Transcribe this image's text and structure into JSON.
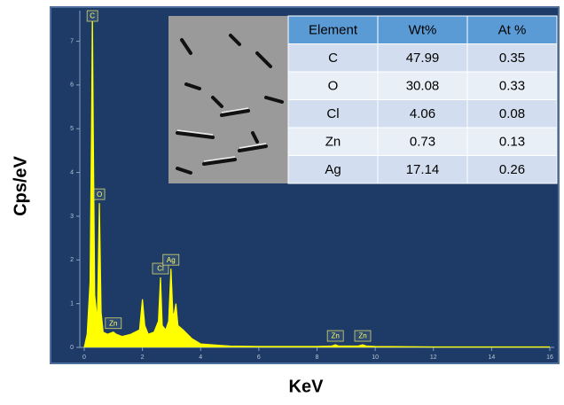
{
  "chart_data": {
    "type": "area",
    "x_label": "KeV",
    "y_label": "Cps/eV",
    "x": [
      0,
      0.1,
      0.2,
      0.25,
      0.28,
      0.31,
      0.36,
      0.45,
      0.52,
      0.58,
      0.65,
      0.8,
      1.0,
      1.1,
      1.3,
      1.6,
      1.9,
      2.0,
      2.08,
      2.2,
      2.4,
      2.55,
      2.62,
      2.68,
      2.8,
      2.9,
      2.98,
      3.05,
      3.1,
      3.15,
      3.22,
      3.4,
      3.7,
      4.0,
      5,
      6,
      7,
      8,
      8.5,
      8.63,
      8.75,
      9.4,
      9.57,
      9.7,
      10,
      12,
      14,
      16
    ],
    "values": [
      0,
      0.3,
      1.5,
      5,
      7.7,
      5,
      1.2,
      0.6,
      3.3,
      0.8,
      0.35,
      0.3,
      0.35,
      0.3,
      0.25,
      0.3,
      0.4,
      1.1,
      0.5,
      0.3,
      0.35,
      0.6,
      1.6,
      0.5,
      0.4,
      0.6,
      1.8,
      0.7,
      0.8,
      1.0,
      0.5,
      0.4,
      0.2,
      0.08,
      0.03,
      0.02,
      0.02,
      0.02,
      0.03,
      0.06,
      0.03,
      0.03,
      0.06,
      0.03,
      0.02,
      0.01,
      0.01,
      0.01
    ],
    "color": "#ffff00",
    "xlim": [
      0,
      16
    ],
    "ylim": [
      0,
      7.7
    ],
    "xticks": [
      0,
      2,
      4,
      6,
      8,
      10,
      12,
      14,
      16
    ],
    "yticks": [
      0,
      1,
      2,
      3,
      4,
      5,
      6,
      7
    ],
    "peak_labels": [
      {
        "label": "C",
        "x": 0.28
      },
      {
        "label": "O",
        "x": 0.52
      },
      {
        "label": "Zn",
        "x": 1.0
      },
      {
        "label": "Cl",
        "x": 2.62
      },
      {
        "label": "Ag",
        "x": 2.98
      },
      {
        "label": "Zn",
        "x": 8.63
      },
      {
        "label": "Zn",
        "x": 9.57
      }
    ]
  },
  "table": {
    "header": [
      "Element",
      "Wt%",
      "At %"
    ],
    "rows": [
      [
        "C",
        47.99,
        0.35
      ],
      [
        "O",
        30.08,
        0.33
      ],
      [
        "Cl",
        4.06,
        0.08
      ],
      [
        "Zn",
        0.73,
        0.13
      ],
      [
        "Ag",
        17.14,
        0.26
      ]
    ]
  }
}
